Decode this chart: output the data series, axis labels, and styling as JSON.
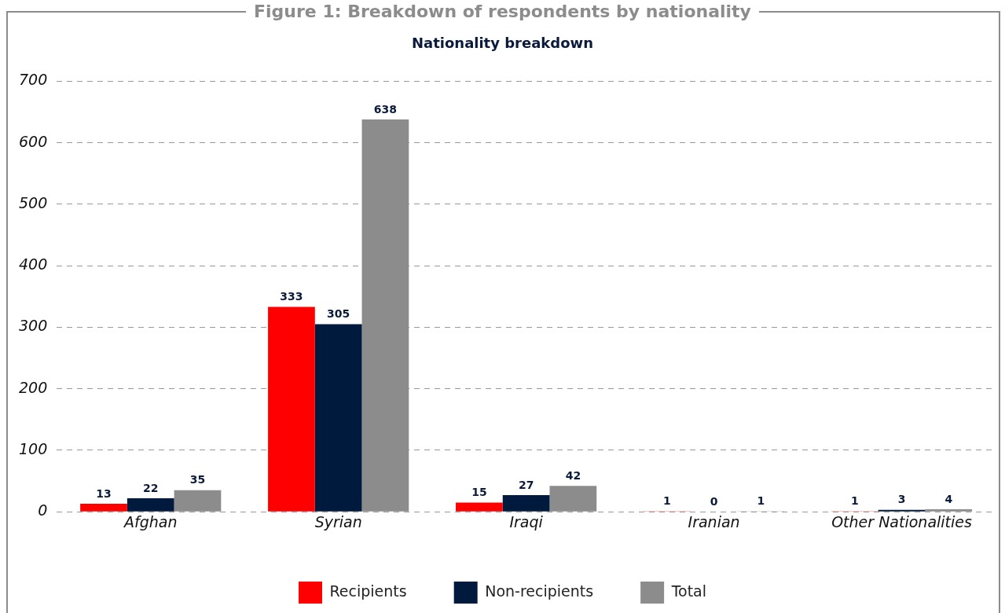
{
  "chart_data": {
    "type": "bar",
    "title": "Figure 1: Breakdown of respondents by nationality",
    "subtitle": "Nationality breakdown",
    "categories": [
      "Afghan",
      "Syrian",
      "Iraqi",
      "Iranian",
      "Other Nationalities"
    ],
    "series": [
      {
        "name": "Recipients",
        "color": "#ff0000",
        "values": [
          13,
          333,
          15,
          1,
          1
        ]
      },
      {
        "name": "Non-recipients",
        "color": "#001a3d",
        "values": [
          22,
          305,
          27,
          0,
          3
        ]
      },
      {
        "name": "Total",
        "color": "#8c8c8c",
        "values": [
          35,
          638,
          42,
          1,
          4
        ]
      }
    ],
    "ylim": [
      0,
      700
    ],
    "yticks": [
      0,
      100,
      200,
      300,
      400,
      500,
      600,
      700
    ],
    "grid": "y",
    "legend": "bottom",
    "data_labels": true
  }
}
